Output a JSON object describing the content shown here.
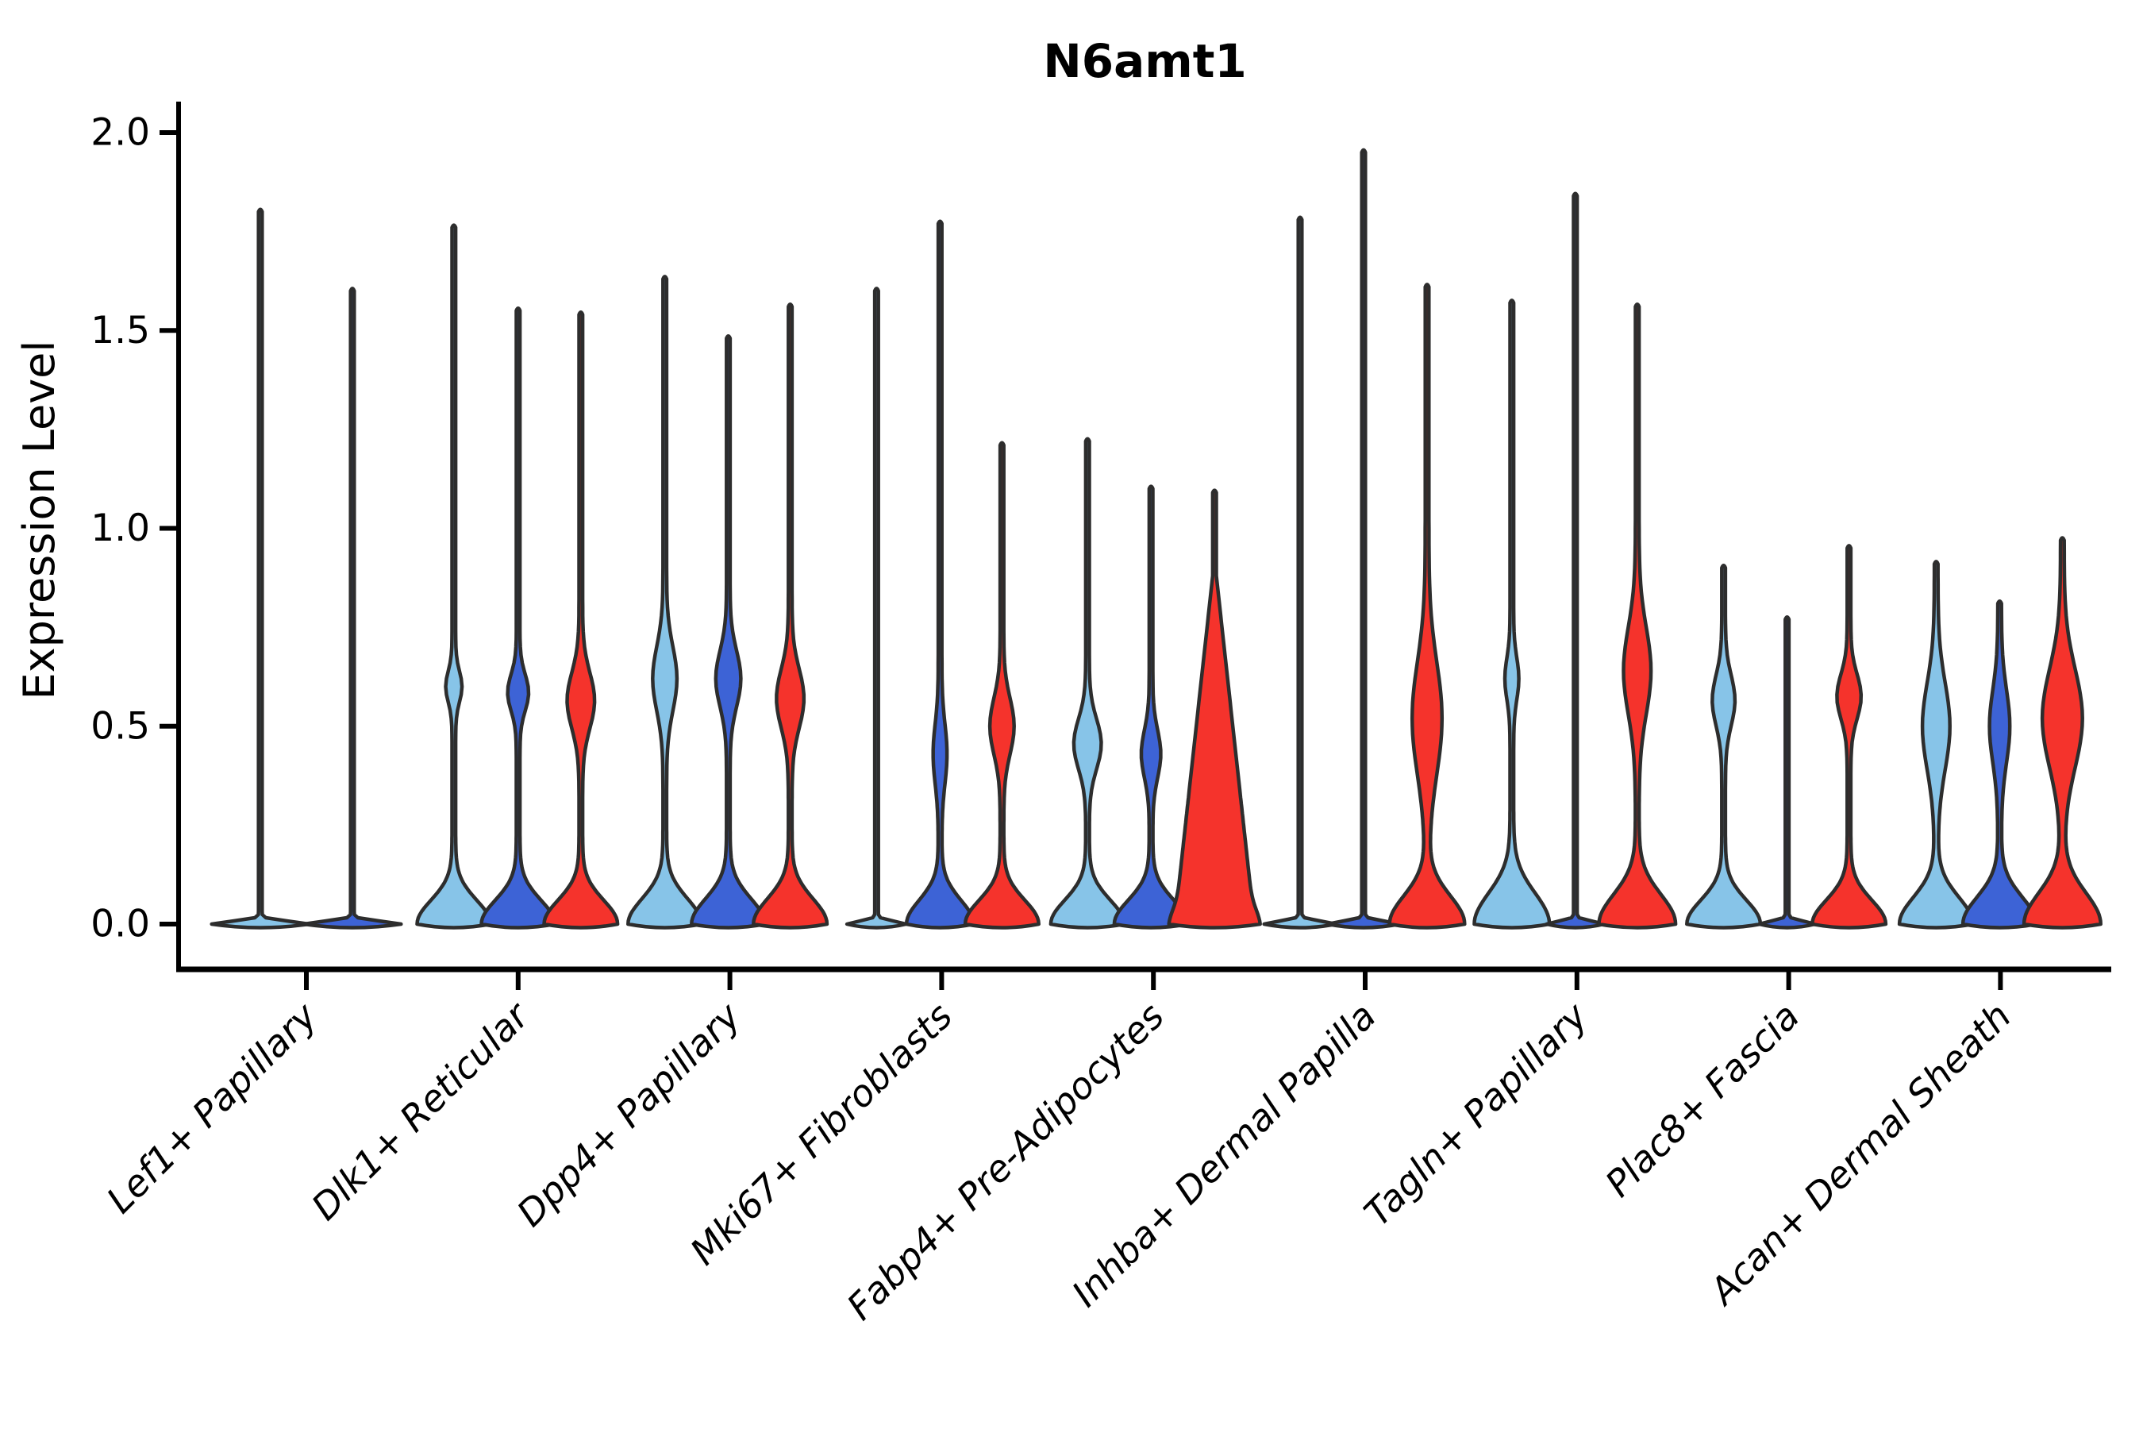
{
  "chart_data": {
    "type": "violin",
    "title": "N6amt1",
    "ylabel": "Expression Level",
    "ylim": [
      0.0,
      2.05
    ],
    "grid": false,
    "legend": "none",
    "yticks": [
      "0.0",
      "0.5",
      "1.0",
      "1.5",
      "2.0"
    ],
    "ytick_values": [
      0.0,
      0.5,
      1.0,
      1.5,
      2.0
    ],
    "categories": [
      "Lef1+ Papillary",
      "Dlk1+ Reticular",
      "Dpp4+ Papillary",
      "Mki67+ Fibroblasts",
      "Fabp4+ Pre-Adipocytes",
      "Inhba+ Dermal Papilla",
      "Tagln+ Papillary",
      "Plac8+ Fascia",
      "Acan+ Dermal Sheath"
    ],
    "palette": {
      "lightblue": "#87C4E8",
      "blue": "#3D63D6",
      "red": "#F5332C",
      "outline": "#2D2D2D",
      "axis": "#000000"
    },
    "groups": [
      {
        "category": "Lef1+ Papillary",
        "violins": [
          {
            "color": "lightblue",
            "max": 1.8,
            "flat": true,
            "offset": -58,
            "base_w": 118
          },
          {
            "color": "blue",
            "max": 1.6,
            "flat": true,
            "offset": 58,
            "base_w": 118
          }
        ]
      },
      {
        "category": "Dlk1+ Reticular",
        "violins": [
          {
            "color": "lightblue",
            "max": 1.76,
            "offset": -81,
            "base_w": 88,
            "bulge": {
              "center": 0.6,
              "spread": 0.055,
              "width": 16
            }
          },
          {
            "color": "blue",
            "max": 1.55,
            "offset": 0,
            "base_w": 88,
            "bulge": {
              "center": 0.585,
              "spread": 0.065,
              "width": 22
            }
          },
          {
            "color": "red",
            "max": 1.54,
            "offset": 79,
            "base_w": 88,
            "bulge": {
              "center": 0.565,
              "spread": 0.1,
              "width": 30
            }
          }
        ]
      },
      {
        "category": "Dpp4+ Papillary",
        "violins": [
          {
            "color": "lightblue",
            "max": 1.63,
            "offset": -82,
            "base_w": 88,
            "base_sigma": 0.09,
            "bulge": {
              "center": 0.62,
              "spread": 0.115,
              "width": 26
            }
          },
          {
            "color": "blue",
            "max": 1.48,
            "offset": -2,
            "base_w": 88,
            "base_sigma": 0.09,
            "bulge": {
              "center": 0.62,
              "spread": 0.1,
              "width": 27
            }
          },
          {
            "color": "red",
            "max": 1.56,
            "offset": 76,
            "base_w": 88,
            "base_sigma": 0.09,
            "bulge": {
              "center": 0.57,
              "spread": 0.105,
              "width": 30
            }
          }
        ]
      },
      {
        "category": "Mki67+ Fibroblasts",
        "violins": [
          {
            "color": "lightblue",
            "max": 1.6,
            "flat": true,
            "offset": -82,
            "base_w": 70
          },
          {
            "color": "blue",
            "max": 1.77,
            "offset": -2,
            "base_w": 80,
            "bulge": {
              "center": 0.43,
              "spread": 0.105,
              "width": 13
            }
          },
          {
            "color": "red",
            "max": 1.21,
            "offset": 76,
            "base_w": 88,
            "bulge": {
              "center": 0.5,
              "spread": 0.1,
              "width": 26
            }
          }
        ]
      },
      {
        "category": "Fabp4+ Pre-Adipocytes",
        "violins": [
          {
            "color": "lightblue",
            "max": 1.22,
            "offset": -83,
            "base_w": 88,
            "bulge": {
              "center": 0.455,
              "spread": 0.09,
              "width": 30
            }
          },
          {
            "color": "blue",
            "max": 1.1,
            "offset": -3,
            "base_w": 88,
            "bulge": {
              "center": 0.43,
              "spread": 0.085,
              "width": 20
            }
          },
          {
            "color": "red",
            "max": 1.09,
            "offset": 77,
            "base_w": 96,
            "shape": "cone",
            "cone_h": 0.88
          }
        ]
      },
      {
        "category": "Inhba+ Dermal Papilla",
        "violins": [
          {
            "color": "lightblue",
            "max": 1.78,
            "flat": true,
            "offset": -82,
            "base_w": 86
          },
          {
            "color": "blue",
            "max": 1.95,
            "flat": true,
            "offset": -2,
            "base_w": 86
          },
          {
            "color": "red",
            "max": 1.61,
            "offset": 78,
            "base_w": 90,
            "base_sigma": 0.1,
            "bulge": {
              "center": 0.52,
              "spread": 0.2,
              "width": 33
            }
          }
        ]
      },
      {
        "category": "Tagln+ Papillary",
        "violins": [
          {
            "color": "lightblue",
            "max": 1.57,
            "offset": -82,
            "base_w": 90,
            "base_sigma": 0.11,
            "bulge": {
              "center": 0.62,
              "spread": 0.075,
              "width": 13
            }
          },
          {
            "color": "blue",
            "max": 1.84,
            "flat": true,
            "offset": -2,
            "base_w": 68
          },
          {
            "color": "red",
            "max": 1.56,
            "offset": 76,
            "base_w": 92,
            "base_sigma": 0.105,
            "bulge": {
              "center": 0.64,
              "spread": 0.155,
              "width": 30
            }
          }
        ]
      },
      {
        "category": "Plac8+ Fascia",
        "violins": [
          {
            "color": "lightblue",
            "max": 0.9,
            "offset": -82,
            "base_w": 88,
            "bulge": {
              "center": 0.565,
              "spread": 0.09,
              "width": 24
            }
          },
          {
            "color": "blue",
            "max": 0.77,
            "flat": true,
            "offset": -2,
            "base_w": 66
          },
          {
            "color": "red",
            "max": 0.95,
            "offset": 76,
            "base_w": 88,
            "bulge": {
              "center": 0.575,
              "spread": 0.08,
              "width": 26
            }
          }
        ]
      },
      {
        "category": "Acan+ Dermal Sheath",
        "violins": [
          {
            "color": "lightblue",
            "max": 0.91,
            "offset": -81,
            "base_w": 88,
            "base_sigma": 0.095,
            "bulge": {
              "center": 0.5,
              "spread": 0.155,
              "width": 30
            }
          },
          {
            "color": "blue",
            "max": 0.81,
            "offset": -1,
            "base_w": 88,
            "base_sigma": 0.095,
            "bulge": {
              "center": 0.5,
              "spread": 0.13,
              "width": 21
            }
          },
          {
            "color": "red",
            "max": 0.97,
            "offset": 78,
            "base_w": 92,
            "base_sigma": 0.11,
            "bulge": {
              "center": 0.52,
              "spread": 0.175,
              "width": 46
            }
          }
        ]
      }
    ]
  }
}
